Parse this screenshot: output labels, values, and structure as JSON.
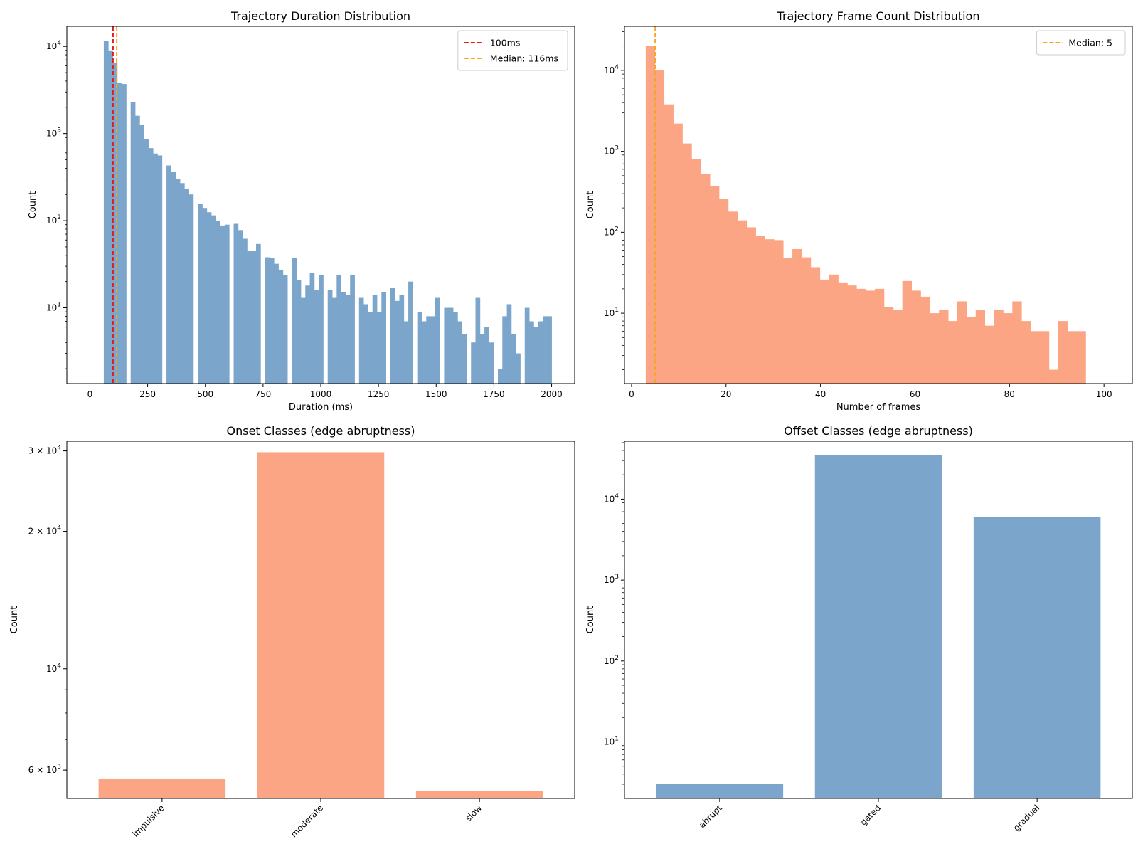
{
  "chart_data": [
    {
      "type": "bar",
      "title": "Trajectory Duration Distribution",
      "xlabel": "Duration (ms)",
      "ylabel": "Count",
      "yscale": "log",
      "xlim": [
        -100,
        2100
      ],
      "ylim": [
        1.35,
        17000
      ],
      "xticks": [
        0,
        250,
        500,
        750,
        1000,
        1250,
        1500,
        1750,
        2000
      ],
      "xtick_labels": [
        "0",
        "250",
        "500",
        "750",
        "1000",
        "1250",
        "1500",
        "1750",
        "2000"
      ],
      "ytick_labels": [
        "10^1",
        "10^2",
        "10^3",
        "10^4"
      ],
      "bin_edges_range": [
        60,
        2000
      ],
      "bin_width": 19.4,
      "values": [
        11500,
        9000,
        6500,
        3800,
        3700,
        0,
        2300,
        1600,
        1250,
        870,
        680,
        590,
        560,
        0,
        430,
        360,
        300,
        270,
        230,
        200,
        0,
        155,
        140,
        125,
        115,
        100,
        88,
        90,
        0,
        92,
        78,
        62,
        45,
        45,
        54,
        0,
        38,
        37,
        32,
        27,
        24,
        0,
        37,
        21,
        13,
        18,
        25,
        16,
        24,
        0,
        16,
        13,
        24,
        15,
        14,
        24,
        0,
        13,
        11,
        9,
        14,
        9,
        15,
        0,
        17,
        12,
        14,
        7,
        20,
        0,
        9,
        7,
        8,
        8,
        13,
        0,
        10,
        10,
        9,
        7,
        5,
        0,
        4,
        13,
        5,
        6,
        4,
        0,
        2,
        8,
        11,
        5,
        3,
        0,
        10,
        7,
        6,
        7,
        8,
        8
      ],
      "color": "#7ba5ca",
      "reference_lines": [
        {
          "label": "100ms",
          "x": 100,
          "color": "#e41a1c",
          "style": "dashed"
        },
        {
          "label": "Median: 116ms",
          "x": 116,
          "color": "#f5a623",
          "style": "dashed"
        }
      ],
      "legend": "top-right"
    },
    {
      "type": "bar",
      "title": "Trajectory Frame Count Distribution",
      "xlabel": "Number of frames",
      "ylabel": "Count",
      "yscale": "log",
      "xlim": [
        -1.5,
        106
      ],
      "ylim": [
        1.35,
        35000
      ],
      "xticks": [
        0,
        20,
        40,
        60,
        80,
        100
      ],
      "xtick_labels": [
        "0",
        "20",
        "40",
        "60",
        "80",
        "100"
      ],
      "ytick_labels": [
        "10^1",
        "10^2",
        "10^3",
        "10^4"
      ],
      "bin_edges_range": [
        3,
        100
      ],
      "bin_width": 1.94,
      "values": [
        20000,
        10000,
        3800,
        2200,
        1250,
        800,
        520,
        370,
        260,
        180,
        140,
        115,
        90,
        82,
        80,
        48,
        62,
        49,
        37,
        26,
        30,
        24,
        22,
        20,
        19,
        20,
        12,
        11,
        25,
        19,
        16,
        10,
        11,
        8,
        14,
        9,
        11,
        7,
        11,
        10,
        14,
        8,
        6,
        6,
        2,
        8,
        6,
        6
      ],
      "color": "#fca584",
      "reference_lines": [
        {
          "label": "Median: 5",
          "x": 5,
          "color": "#f5a623",
          "style": "dashed"
        }
      ],
      "legend": "top-right"
    },
    {
      "type": "bar",
      "title": "Onset Classes (edge abruptness)",
      "ylabel": "Count",
      "yscale": "log",
      "ylim": [
        5200,
        31500
      ],
      "categories": [
        "impulsive",
        "moderate",
        "slow"
      ],
      "values": [
        5750,
        29800,
        5400
      ],
      "ytick_labels": [
        "6 × 10^3",
        "10^4",
        "2 × 10^4",
        "3 × 10^4"
      ],
      "color": "#fca584"
    },
    {
      "type": "bar",
      "title": "Offset Classes (edge abruptness)",
      "ylabel": "Count",
      "yscale": "log",
      "ylim": [
        2,
        52000
      ],
      "categories": [
        "abrupt",
        "gated",
        "gradual"
      ],
      "values": [
        3,
        35000,
        6000
      ],
      "ytick_labels": [
        "10^1",
        "10^2",
        "10^3",
        "10^4"
      ],
      "color": "#7ba5ca"
    }
  ]
}
